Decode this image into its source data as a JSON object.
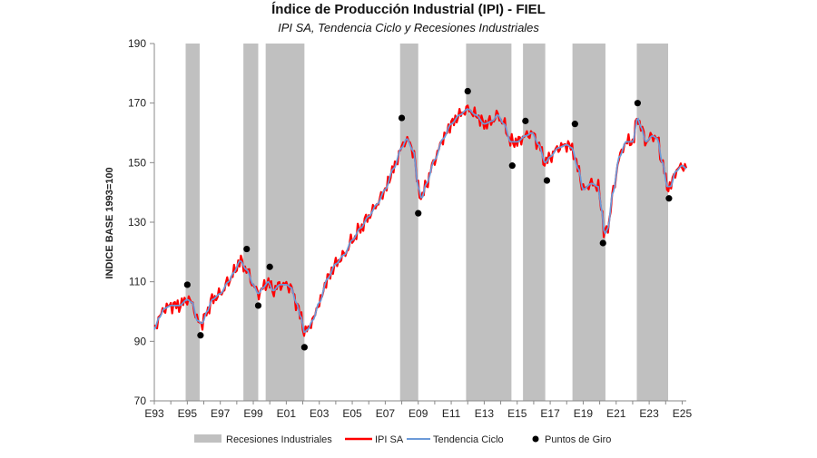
{
  "chart_data": {
    "type": "line",
    "title": "Índice de Producción Industrial (IPI) - FIEL",
    "subtitle": "IPI SA, Tendencia Ciclo y Recesiones Industriales",
    "ylabel": "INDICE BASE 1993=100",
    "xlabel": "",
    "xlim": [
      1993.0,
      2025.25
    ],
    "ylim": [
      70,
      190
    ],
    "yticks": [
      70,
      90,
      110,
      130,
      150,
      170,
      190
    ],
    "xtick_labels": [
      "E93",
      "E95",
      "E97",
      "E99",
      "E01",
      "E03",
      "E05",
      "E07",
      "E09",
      "E11",
      "E13",
      "E15",
      "E17",
      "E19",
      "E21",
      "E23",
      "E25"
    ],
    "xtick_years": [
      1993,
      1995,
      1997,
      1999,
      2001,
      2003,
      2005,
      2007,
      2009,
      2011,
      2013,
      2015,
      2017,
      2019,
      2021,
      2023,
      2025
    ],
    "recessions": [
      {
        "start": 1994.9,
        "end": 1995.75
      },
      {
        "start": 1998.4,
        "end": 1999.3
      },
      {
        "start": 1999.75,
        "end": 2002.1
      },
      {
        "start": 2007.9,
        "end": 2009.0
      },
      {
        "start": 2011.9,
        "end": 2014.65
      },
      {
        "start": 2015.35,
        "end": 2016.7
      },
      {
        "start": 2018.35,
        "end": 2020.35
      },
      {
        "start": 2022.25,
        "end": 2024.15
      }
    ],
    "trend_knots": [
      [
        1993.0,
        94
      ],
      [
        1993.3,
        98
      ],
      [
        1993.6,
        101
      ],
      [
        1994.0,
        102
      ],
      [
        1994.5,
        102
      ],
      [
        1995.0,
        104
      ],
      [
        1995.3,
        103
      ],
      [
        1995.6,
        97
      ],
      [
        1995.9,
        96
      ],
      [
        1996.2,
        100
      ],
      [
        1996.5,
        104
      ],
      [
        1997.0,
        106
      ],
      [
        1997.5,
        110
      ],
      [
        1997.8,
        113
      ],
      [
        1998.2,
        117
      ],
      [
        1998.6,
        114
      ],
      [
        1999.0,
        109
      ],
      [
        1999.3,
        106
      ],
      [
        1999.6,
        108
      ],
      [
        1999.9,
        110
      ],
      [
        2000.2,
        107
      ],
      [
        2000.6,
        109
      ],
      [
        2001.0,
        109
      ],
      [
        2001.3,
        108
      ],
      [
        2001.6,
        103
      ],
      [
        2001.9,
        98
      ],
      [
        2002.1,
        93
      ],
      [
        2002.3,
        94
      ],
      [
        2002.6,
        97
      ],
      [
        2003.0,
        103
      ],
      [
        2003.5,
        111
      ],
      [
        2004.0,
        116
      ],
      [
        2004.5,
        119
      ],
      [
        2005.0,
        124
      ],
      [
        2005.5,
        128
      ],
      [
        2006.0,
        132
      ],
      [
        2006.5,
        136
      ],
      [
        2007.0,
        141
      ],
      [
        2007.5,
        148
      ],
      [
        2008.0,
        155
      ],
      [
        2008.3,
        158
      ],
      [
        2008.7,
        154
      ],
      [
        2009.0,
        142
      ],
      [
        2009.2,
        138
      ],
      [
        2009.5,
        143
      ],
      [
        2010.0,
        151
      ],
      [
        2010.5,
        158
      ],
      [
        2011.0,
        163
      ],
      [
        2011.5,
        166
      ],
      [
        2012.0,
        168
      ],
      [
        2012.5,
        166
      ],
      [
        2013.0,
        163
      ],
      [
        2013.5,
        164
      ],
      [
        2013.8,
        166
      ],
      [
        2014.2,
        163
      ],
      [
        2014.6,
        157
      ],
      [
        2015.0,
        157
      ],
      [
        2015.5,
        159
      ],
      [
        2015.9,
        160
      ],
      [
        2016.3,
        156
      ],
      [
        2016.7,
        150
      ],
      [
        2017.0,
        152
      ],
      [
        2017.5,
        155
      ],
      [
        2018.0,
        156
      ],
      [
        2018.3,
        155
      ],
      [
        2018.7,
        148
      ],
      [
        2019.0,
        141
      ],
      [
        2019.5,
        143
      ],
      [
        2019.9,
        142
      ],
      [
        2020.1,
        135
      ],
      [
        2020.3,
        126
      ],
      [
        2020.5,
        128
      ],
      [
        2020.8,
        140
      ],
      [
        2021.2,
        152
      ],
      [
        2021.6,
        157
      ],
      [
        2022.0,
        157
      ],
      [
        2022.3,
        165
      ],
      [
        2022.5,
        162
      ],
      [
        2022.8,
        157
      ],
      [
        2023.2,
        159
      ],
      [
        2023.5,
        158
      ],
      [
        2023.8,
        150
      ],
      [
        2024.1,
        142
      ],
      [
        2024.3,
        142
      ],
      [
        2024.6,
        147
      ],
      [
        2025.0,
        149
      ],
      [
        2025.25,
        148
      ]
    ],
    "turning_points": [
      [
        1995.0,
        109
      ],
      [
        1995.8,
        92
      ],
      [
        1998.6,
        121
      ],
      [
        1999.3,
        102
      ],
      [
        2000.0,
        115
      ],
      [
        2002.1,
        88
      ],
      [
        2008.0,
        165
      ],
      [
        2009.0,
        133
      ],
      [
        2012.0,
        174
      ],
      [
        2014.7,
        149
      ],
      [
        2015.5,
        164
      ],
      [
        2016.8,
        144
      ],
      [
        2018.5,
        163
      ],
      [
        2020.2,
        123
      ],
      [
        2022.3,
        170
      ],
      [
        2024.2,
        138
      ]
    ],
    "legend": [
      "Recesiones Industriales",
      "IPI SA",
      "Tendencia Ciclo",
      "Puntos de Giro"
    ],
    "colors": {
      "recession": "#c0c0c0",
      "ipi": "#ff0000",
      "trend": "#6c9ad8",
      "points": "#000000",
      "axis": "#888888"
    }
  }
}
